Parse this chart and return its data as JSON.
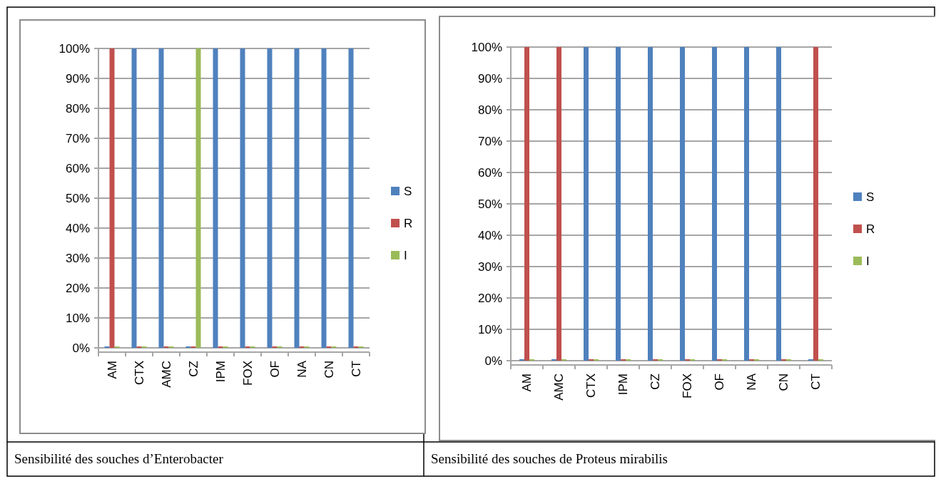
{
  "chart_data": [
    {
      "type": "bar",
      "title": "Sensibilité des souches d’Enterobacter",
      "categories": [
        "AM",
        "CTX",
        "AMC",
        "CZ",
        "IPM",
        "FOX",
        "OF",
        "NA",
        "CN",
        "CT"
      ],
      "series": [
        {
          "name": "S",
          "color": "#4f81bd",
          "values": [
            0,
            100,
            100,
            0,
            100,
            100,
            100,
            100,
            100,
            100
          ]
        },
        {
          "name": "R",
          "color": "#c0504d",
          "values": [
            100,
            0,
            0,
            0,
            0,
            0,
            0,
            0,
            0,
            0
          ]
        },
        {
          "name": "I",
          "color": "#9bbb59",
          "values": [
            0,
            0,
            0,
            100,
            0,
            0,
            0,
            0,
            0,
            0
          ]
        }
      ],
      "ylim": [
        0,
        100
      ],
      "yticks": [
        {
          "value": 0,
          "label": "0%"
        },
        {
          "value": 10,
          "label": "10%"
        },
        {
          "value": 20,
          "label": "20%"
        },
        {
          "value": 30,
          "label": "30%"
        },
        {
          "value": 40,
          "label": "40%"
        },
        {
          "value": 50,
          "label": "50%"
        },
        {
          "value": 60,
          "label": "60%"
        },
        {
          "value": 70,
          "label": "70%"
        },
        {
          "value": 80,
          "label": "80%"
        },
        {
          "value": 90,
          "label": "90%"
        },
        {
          "value": 100,
          "label": "100%"
        }
      ],
      "grid": "y",
      "legend": "right"
    },
    {
      "type": "bar",
      "title": "Sensibilité des souches de Proteus mirabilis",
      "categories": [
        "AM",
        "AMC",
        "CTX",
        "IPM",
        "CZ",
        "FOX",
        "OF",
        "NA",
        "CN",
        "CT"
      ],
      "series": [
        {
          "name": "S",
          "color": "#4f81bd",
          "values": [
            0,
            0,
            100,
            100,
            100,
            100,
            100,
            100,
            100,
            0
          ]
        },
        {
          "name": "R",
          "color": "#c0504d",
          "values": [
            100,
            100,
            0,
            0,
            0,
            0,
            0,
            0,
            0,
            100
          ]
        },
        {
          "name": "I",
          "color": "#9bbb59",
          "values": [
            0,
            0,
            0,
            0,
            0,
            0,
            0,
            0,
            0,
            0
          ]
        }
      ],
      "ylim": [
        0,
        100
      ],
      "yticks": [
        {
          "value": 0,
          "label": "0%"
        },
        {
          "value": 10,
          "label": "10%"
        },
        {
          "value": 20,
          "label": "20%"
        },
        {
          "value": 30,
          "label": "30%"
        },
        {
          "value": 40,
          "label": "40%"
        },
        {
          "value": 50,
          "label": "50%"
        },
        {
          "value": 60,
          "label": "60%"
        },
        {
          "value": 70,
          "label": "70%"
        },
        {
          "value": 80,
          "label": "80%"
        },
        {
          "value": 90,
          "label": "90%"
        },
        {
          "value": 100,
          "label": "100%"
        }
      ],
      "grid": "y",
      "legend": "right"
    }
  ]
}
